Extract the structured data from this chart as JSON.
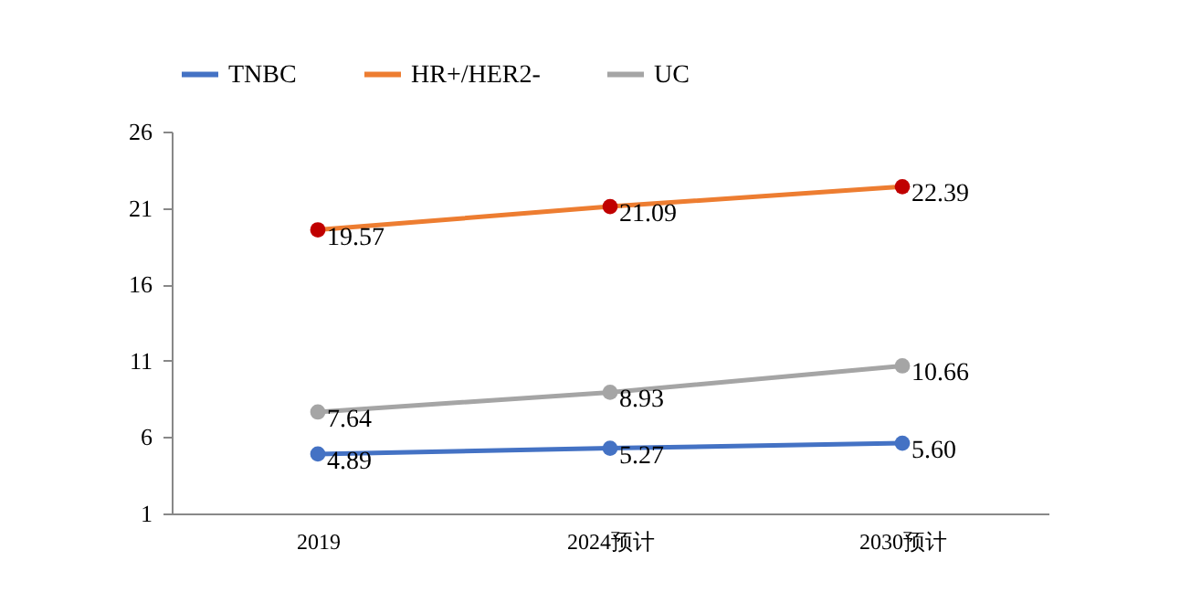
{
  "chart_data": {
    "type": "line",
    "categories": [
      "2019",
      "2024预计",
      "2030预计"
    ],
    "series": [
      {
        "name": "TNBC",
        "color": "#4472c4",
        "values": [
          4.89,
          5.27,
          5.6
        ],
        "value_labels": [
          "4.89",
          "5.27",
          "5.60"
        ]
      },
      {
        "name": "HR+/HER2-",
        "color": "#ed7d31",
        "colors": [
          "#c00000",
          "#c00000",
          "#c00000"
        ],
        "values": [
          19.57,
          21.09,
          22.39
        ],
        "value_labels": [
          "19.57",
          "21.09",
          "22.39"
        ]
      },
      {
        "name": "UC",
        "color": "#a5a5a5",
        "values": [
          7.64,
          8.93,
          10.66
        ],
        "value_labels": [
          "7.64",
          "8.93",
          "10.66"
        ]
      }
    ],
    "ylim": [
      1,
      26
    ],
    "yticks": [
      1,
      6,
      11,
      16,
      21,
      26
    ],
    "grid": false,
    "legend": "top",
    "marker": "circle",
    "line_style": "solid"
  }
}
